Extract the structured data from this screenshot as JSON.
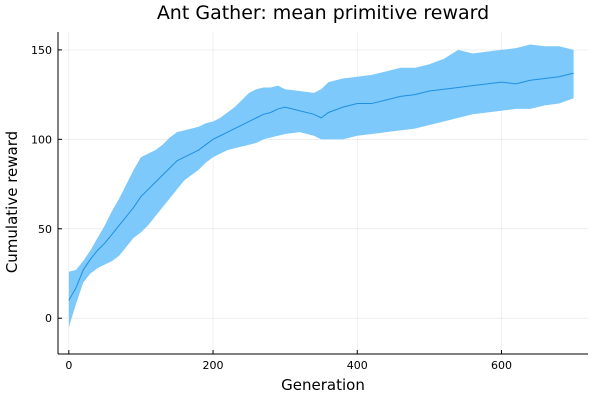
{
  "chart_data": {
    "type": "area",
    "title": "Ant Gather: mean primitive reward",
    "xlabel": "Generation",
    "ylabel": "Cumulative reward",
    "xlim": [
      -15,
      720
    ],
    "ylim": [
      -20,
      160
    ],
    "xticks": [
      0,
      200,
      400,
      600
    ],
    "yticks": [
      0,
      50,
      100,
      150
    ],
    "grid": true,
    "legend": "none",
    "colors": {
      "band": "#7dc9fb",
      "line": "#1f8fe0"
    },
    "series": [
      {
        "x": [
          0,
          10,
          20,
          30,
          40,
          50,
          60,
          70,
          80,
          90,
          100,
          110,
          120,
          130,
          140,
          150,
          160,
          170,
          180,
          190,
          200,
          210,
          220,
          230,
          240,
          250,
          260,
          270,
          280,
          290,
          300,
          320,
          340,
          350,
          360,
          380,
          400,
          420,
          440,
          460,
          480,
          500,
          520,
          540,
          560,
          580,
          600,
          620,
          640,
          660,
          680,
          700
        ],
        "mean": [
          10,
          17,
          27,
          33,
          38,
          42,
          47,
          52,
          57,
          62,
          68,
          72,
          76,
          80,
          84,
          88,
          90,
          92,
          94,
          97,
          100,
          102,
          104,
          106,
          108,
          110,
          112,
          114,
          115,
          117,
          118,
          116,
          114,
          112,
          115,
          118,
          120,
          120,
          122,
          124,
          125,
          127,
          128,
          129,
          130,
          131,
          132,
          131,
          133,
          134,
          135,
          137
        ],
        "upper": [
          26,
          27,
          32,
          38,
          45,
          52,
          60,
          67,
          75,
          83,
          90,
          92,
          94,
          97,
          101,
          104,
          105,
          106,
          107,
          109,
          110,
          112,
          115,
          118,
          122,
          126,
          128,
          129,
          129,
          130,
          128,
          127,
          126,
          128,
          132,
          134,
          135,
          136,
          138,
          140,
          140,
          142,
          145,
          150,
          148,
          149,
          150,
          151,
          153,
          152,
          152,
          150
        ],
        "lower": [
          -5,
          8,
          20,
          25,
          28,
          30,
          32,
          35,
          40,
          45,
          48,
          52,
          57,
          62,
          67,
          72,
          77,
          80,
          83,
          87,
          90,
          92,
          94,
          95,
          96,
          97,
          98,
          100,
          101,
          102,
          103,
          104,
          102,
          100,
          100,
          100,
          102,
          103,
          104,
          105,
          106,
          108,
          110,
          112,
          114,
          115,
          116,
          117,
          117,
          119,
          120,
          123
        ]
      }
    ]
  }
}
